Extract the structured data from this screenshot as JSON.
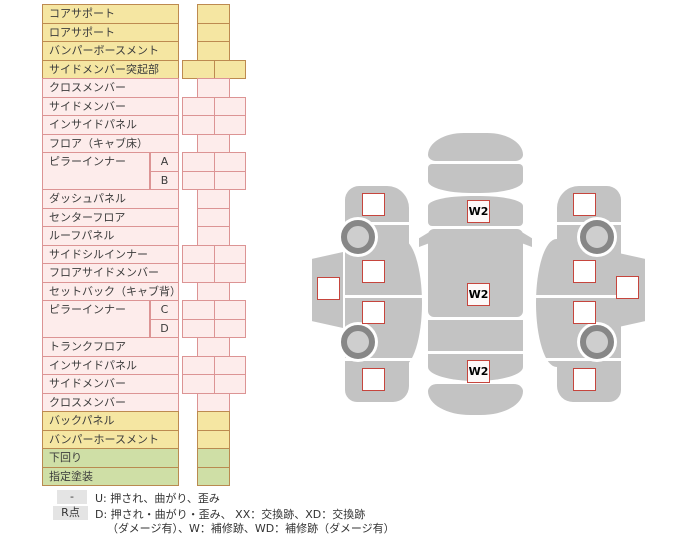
{
  "table": {
    "rows": [
      {
        "label": "コアサポート",
        "color": "yellow",
        "cells": "single"
      },
      {
        "label": "ロアサポート",
        "color": "yellow",
        "cells": "single"
      },
      {
        "label": "バンパーボースメント",
        "color": "yellow",
        "cells": "single"
      },
      {
        "label": "サイドメンバー突起部",
        "color": "yellow",
        "cells": "double"
      },
      {
        "label": "クロスメンバー",
        "color": "pink",
        "cells": "single"
      },
      {
        "label": "サイドメンバー",
        "color": "pink",
        "cells": "double"
      },
      {
        "label": "インサイドパネル",
        "color": "pink",
        "cells": "double"
      },
      {
        "label": "フロア（キャブ床）",
        "color": "pink",
        "cells": "single"
      },
      {
        "label": "ピラーインナー",
        "color": "pink",
        "cells": "double",
        "sub": "A",
        "label_span": 2
      },
      {
        "label": null,
        "color": "pink",
        "cells": "double",
        "sub": "B"
      },
      {
        "label": "ダッシュパネル",
        "color": "pink",
        "cells": "single"
      },
      {
        "label": "センターフロア",
        "color": "pink",
        "cells": "single"
      },
      {
        "label": "ルーフパネル",
        "color": "pink",
        "cells": "single"
      },
      {
        "label": "サイドシルインナー",
        "color": "pink",
        "cells": "double"
      },
      {
        "label": "フロアサイドメンバー",
        "color": "pink",
        "cells": "double"
      },
      {
        "label": "セットバック（キャブ背）",
        "color": "pink",
        "cells": "single"
      },
      {
        "label": "ピラーインナー",
        "color": "pink",
        "cells": "double",
        "sub": "C",
        "label_span": 2
      },
      {
        "label": null,
        "color": "pink",
        "cells": "double",
        "sub": "D"
      },
      {
        "label": "トランクフロア",
        "color": "pink",
        "cells": "single"
      },
      {
        "label": "インサイドパネル",
        "color": "pink",
        "cells": "double"
      },
      {
        "label": "サイドメンバー",
        "color": "pink",
        "cells": "double"
      },
      {
        "label": "クロスメンバー",
        "color": "pink",
        "cells": "single"
      },
      {
        "label": "バックパネル",
        "color": "yellow",
        "cells": "single"
      },
      {
        "label": "バンパーホースメント",
        "color": "yellow",
        "cells": "single"
      },
      {
        "label": "下回り",
        "color": "green",
        "cells": "single"
      },
      {
        "label": "指定塗装",
        "color": "green",
        "cells": "single"
      }
    ]
  },
  "legend": {
    "dash_chip": "-",
    "line1": "U: 押され、曲がり、歪み",
    "r_chip": "R点",
    "line2": "D: 押され・曲がり・歪み、 XX：交換跡、XD：交換跡",
    "line3": "（ダメージ有）、W：補修跡、WD：補修跡（ダメージ有）"
  },
  "diagram": {
    "marks": [
      "W2",
      "W2",
      "W2"
    ]
  },
  "colors": {
    "row_yellow": "#f5e6a2",
    "row_pink": "#fdeceb",
    "row_green": "#cfdfa6",
    "border_brown": "#bd8a50",
    "border_pink": "#dc9494",
    "car_gray": "#c3c3c3",
    "wheel_gray": "#878787",
    "box_border_red": "#c6453d",
    "chip_gray": "#e4e4e4"
  }
}
